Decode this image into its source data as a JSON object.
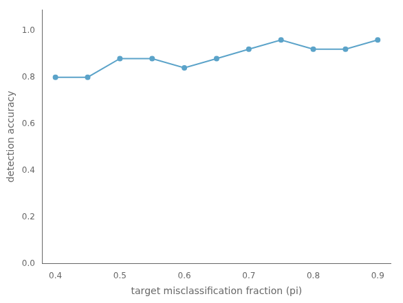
{
  "chart_data": {
    "type": "line",
    "x": [
      0.4,
      0.45,
      0.5,
      0.55,
      0.6,
      0.65,
      0.7,
      0.75,
      0.8,
      0.85,
      0.9
    ],
    "values": [
      0.8,
      0.8,
      0.88,
      0.88,
      0.84,
      0.88,
      0.92,
      0.96,
      0.92,
      0.92,
      0.96
    ],
    "color": "#5ba3c9",
    "marker": "circle",
    "xlabel": "target misclassification fraction (pi)",
    "ylabel": "detection accuracy",
    "xlim": [
      0.38,
      0.92
    ],
    "ylim": [
      0.0,
      1.09
    ],
    "xticks": [
      0.4,
      0.5,
      0.6,
      0.7,
      0.8,
      0.9
    ],
    "yticks": [
      {
        "value": 0.0,
        "label": "0.0"
      },
      0.2,
      0.4,
      0.6,
      0.8,
      {
        "value": 1.0,
        "label": "1.0"
      }
    ],
    "grid": false,
    "legend": false
  }
}
